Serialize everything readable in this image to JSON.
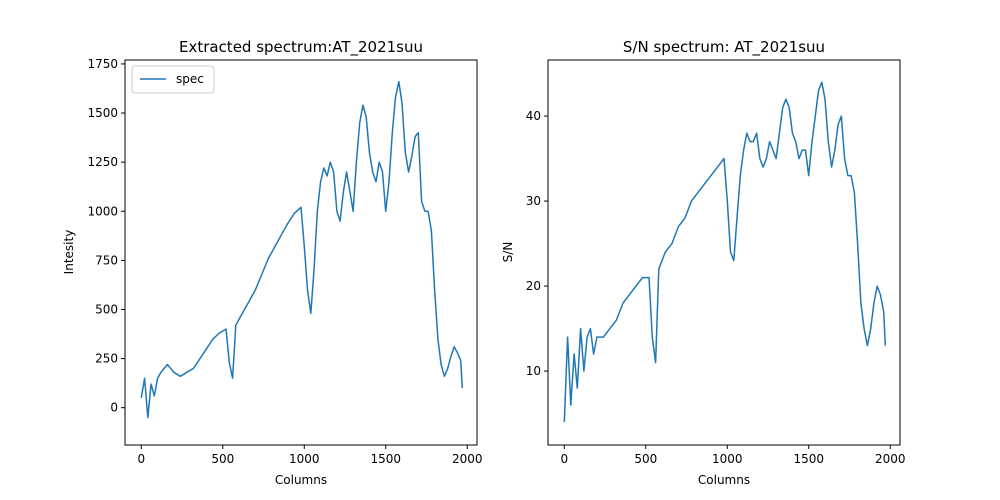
{
  "figure": {
    "background": "#ffffff",
    "line_color": "#1f77b4"
  },
  "chart_data": [
    {
      "type": "line",
      "title": "Extracted spectrum:AT_2021suu",
      "xlabel": "Columns",
      "ylabel": "Intesity",
      "xlim": [
        -100,
        2060
      ],
      "ylim": [
        -190,
        1770
      ],
      "xticks": [
        0,
        500,
        1000,
        1500,
        2000
      ],
      "yticks": [
        0,
        250,
        500,
        750,
        1000,
        1250,
        1500,
        1750
      ],
      "legend": {
        "position": "top-left",
        "entries": [
          "spec"
        ]
      },
      "series": [
        {
          "name": "spec",
          "color": "#1f77b4",
          "x": [
            0,
            20,
            40,
            60,
            80,
            100,
            120,
            140,
            160,
            180,
            200,
            240,
            280,
            320,
            360,
            400,
            440,
            480,
            520,
            540,
            560,
            580,
            620,
            660,
            700,
            740,
            780,
            820,
            860,
            900,
            940,
            980,
            1000,
            1020,
            1040,
            1060,
            1080,
            1100,
            1120,
            1140,
            1160,
            1180,
            1200,
            1220,
            1240,
            1260,
            1280,
            1300,
            1320,
            1340,
            1360,
            1380,
            1400,
            1420,
            1440,
            1460,
            1480,
            1500,
            1520,
            1540,
            1560,
            1580,
            1600,
            1620,
            1640,
            1660,
            1680,
            1700,
            1720,
            1740,
            1760,
            1780,
            1800,
            1820,
            1840,
            1860,
            1880,
            1900,
            1920,
            1940,
            1960,
            1970
          ],
          "y": [
            50,
            150,
            -50,
            120,
            60,
            150,
            180,
            200,
            220,
            200,
            180,
            160,
            180,
            200,
            250,
            300,
            350,
            380,
            400,
            230,
            150,
            420,
            480,
            540,
            600,
            680,
            760,
            820,
            880,
            940,
            990,
            1020,
            820,
            600,
            480,
            700,
            1000,
            1150,
            1220,
            1180,
            1250,
            1200,
            1000,
            950,
            1100,
            1200,
            1100,
            1000,
            1250,
            1450,
            1540,
            1480,
            1300,
            1200,
            1150,
            1250,
            1200,
            1000,
            1150,
            1400,
            1580,
            1660,
            1550,
            1300,
            1200,
            1280,
            1380,
            1400,
            1050,
            1000,
            1000,
            900,
            600,
            350,
            220,
            160,
            200,
            260,
            310,
            280,
            240,
            100
          ]
        }
      ]
    },
    {
      "type": "line",
      "title": "S/N spectrum: AT_2021suu",
      "xlabel": "Columns",
      "ylabel": "S/N",
      "xlim": [
        -100,
        2060
      ],
      "ylim": [
        1.3,
        46.6
      ],
      "xticks": [
        0,
        500,
        1000,
        1500,
        2000
      ],
      "yticks": [
        10,
        20,
        30,
        40
      ],
      "series": [
        {
          "color": "#1f77b4",
          "x": [
            0,
            20,
            40,
            60,
            80,
            100,
            120,
            140,
            160,
            180,
            200,
            240,
            280,
            320,
            360,
            400,
            440,
            480,
            520,
            540,
            560,
            580,
            620,
            660,
            700,
            740,
            780,
            820,
            860,
            900,
            940,
            980,
            1000,
            1020,
            1040,
            1060,
            1080,
            1100,
            1120,
            1140,
            1160,
            1180,
            1200,
            1220,
            1240,
            1260,
            1280,
            1300,
            1320,
            1340,
            1360,
            1380,
            1400,
            1420,
            1440,
            1460,
            1480,
            1500,
            1520,
            1540,
            1560,
            1580,
            1600,
            1620,
            1640,
            1660,
            1680,
            1700,
            1720,
            1740,
            1760,
            1780,
            1800,
            1820,
            1840,
            1860,
            1880,
            1900,
            1920,
            1940,
            1960,
            1970
          ],
          "y": [
            4,
            14,
            6,
            12,
            8,
            15,
            10,
            14,
            15,
            12,
            14,
            14,
            15,
            16,
            18,
            19,
            20,
            21,
            21,
            14,
            11,
            22,
            24,
            25,
            27,
            28,
            30,
            31,
            32,
            33,
            34,
            35,
            30,
            24,
            23,
            28,
            33,
            36,
            38,
            37,
            37,
            38,
            35,
            34,
            35,
            37,
            36,
            35,
            38,
            41,
            42,
            41,
            38,
            37,
            35,
            36,
            36,
            33,
            37,
            40,
            43,
            44,
            42,
            37,
            34,
            36,
            39,
            40,
            35,
            33,
            33,
            31,
            25,
            18,
            15,
            13,
            15,
            18,
            20,
            19,
            17,
            13
          ]
        }
      ]
    }
  ]
}
